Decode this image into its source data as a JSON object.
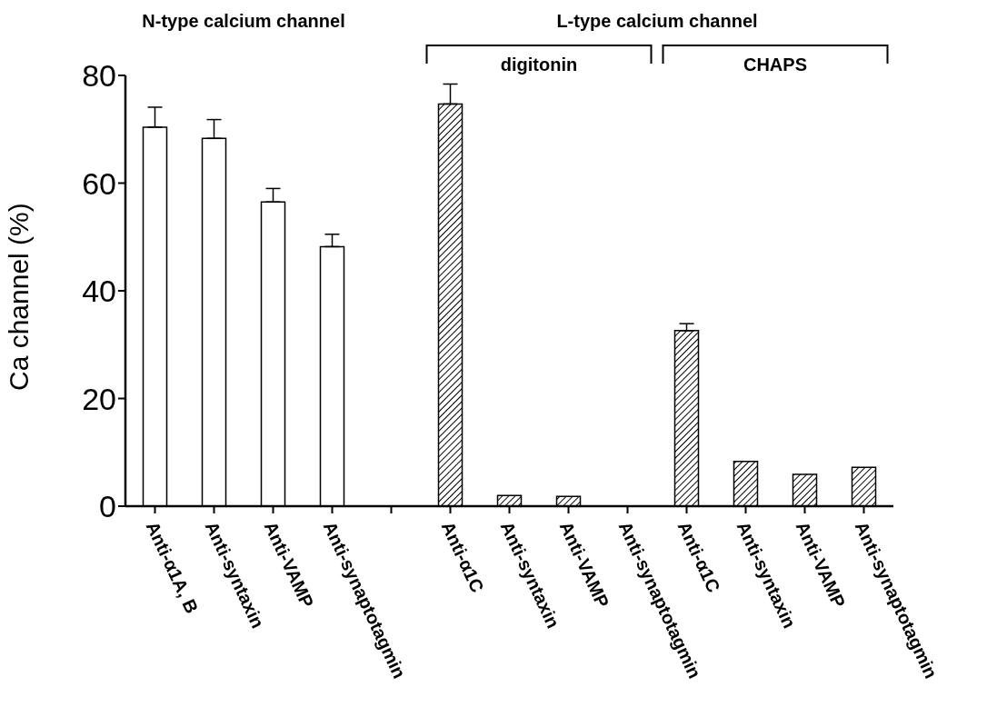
{
  "chart_data": {
    "type": "bar",
    "categories": [
      "Anti-α1A, B",
      "Anti-syntaxin",
      "Anti-VAMP",
      "Anti-synaptotagmin",
      null,
      "Anti-α1C",
      "Anti-syntaxin",
      "Anti-VAMP",
      "Anti-synaptotagmin",
      "Anti-α1C",
      "Anti-syntaxin",
      "Anti-VAMP",
      "Anti-synaptotagmin"
    ],
    "values": [
      70.4,
      68.3,
      56.5,
      48.2,
      null,
      74.7,
      2.0,
      1.8,
      0,
      32.6,
      8.3,
      5.9,
      7.2
    ],
    "errors": [
      [
        70.4,
        74.1
      ],
      [
        68.3,
        71.8
      ],
      [
        56.5,
        59.0
      ],
      [
        48.2,
        50.5
      ],
      null,
      [
        74.7,
        78.4
      ],
      null,
      null,
      null,
      [
        32.6,
        33.9
      ],
      null,
      null,
      null
    ],
    "colors": [
      "#ffffff",
      "#ffffff",
      "#ffffff",
      "#ffffff",
      null,
      "#000000",
      "#000000",
      "#000000",
      "#000000",
      "#000000",
      "#000000",
      "#000000",
      "#000000"
    ],
    "ylabel": "Ca channel (%)",
    "ylim": [
      0,
      80
    ],
    "yticks": [
      0,
      20,
      40,
      60,
      80
    ],
    "grid": false,
    "legend": false,
    "annotations": [
      "N-type calcium channel",
      "L-type calcium channel",
      "digitonin",
      "CHAPS"
    ]
  }
}
